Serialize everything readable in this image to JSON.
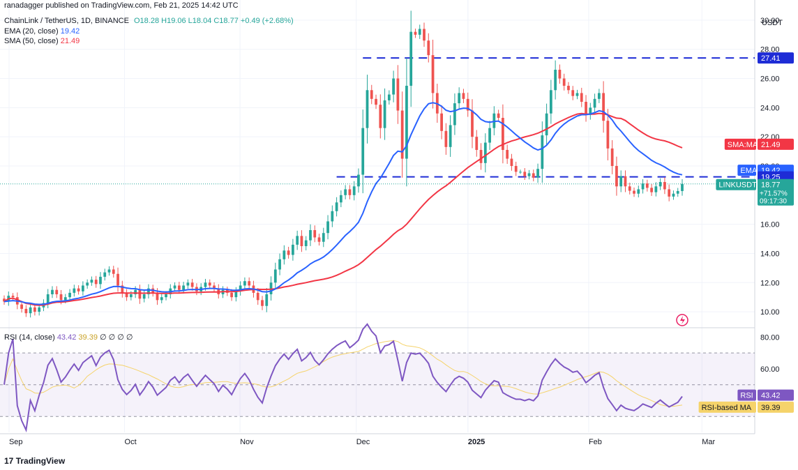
{
  "publisher": "ranadagger published on TradingView.com, Feb 21, 2025 14:42 UTC",
  "legend": {
    "symbol": "ChainLink / TetherUS, 1D, BINANCE",
    "ohlc": "O18.28  H19.06  L18.04  C18.77  +0.49 (+2.68%)",
    "ema": "EMA (20, close)",
    "ema_value": "19.42",
    "sma": "SMA (50, close)",
    "sma_value": "21.49"
  },
  "rsi_legend": {
    "label": "RSI (14, close)",
    "value1": "43.42",
    "value2": "39.39",
    "rest": "∅  ∅  ∅  ∅"
  },
  "currency": "USDT",
  "price_ticks": [
    "30.00",
    "28.00",
    "26.00",
    "24.00",
    "22.00",
    "20.00",
    "16.00",
    "14.00",
    "12.00",
    "10.00"
  ],
  "rsi_ticks": [
    "80.00",
    "60.00"
  ],
  "time_ticks": [
    "Sep",
    "Oct",
    "Nov",
    "Dec",
    "2025",
    "Jan",
    "Feb",
    "Mar"
  ],
  "badges": {
    "level_top": "27.41",
    "sma": {
      "label": "SMA:MA",
      "value": "21.49"
    },
    "ema": {
      "label": "EMA",
      "value": "19.42"
    },
    "level_mid": "19.25",
    "price": {
      "label": "LINKUSDT",
      "value": "18.77",
      "change": "+71.57%",
      "timer": "09:17:30"
    },
    "rsi": {
      "label": "RSI",
      "value": "43.42"
    },
    "rsi_ma": {
      "label": "RSI-based MA",
      "value": "39.39"
    }
  },
  "logo": "TradingView",
  "colors": {
    "up": "#26a69a",
    "down": "#ef5350",
    "ema": "#2962ff",
    "sma": "#f23645",
    "rsi": "#7e57c2",
    "rsi_ma": "#f5d36a",
    "level": "#1e2cd6",
    "price": "#26a69a"
  },
  "chart_data": {
    "type": "candlestick",
    "title": "ChainLink / TetherUS, 1D, BINANCE",
    "y_range": [
      9,
      31
    ],
    "levels": [
      27.41,
      19.25
    ],
    "last_close": 18.77,
    "ema20_last": 19.42,
    "sma50_last": 21.49,
    "rsi_last": 43.42,
    "rsi_ma_last": 39.39,
    "rsi_range": [
      20,
      85
    ],
    "rsi_band": [
      30,
      70
    ],
    "closes": [
      10.7,
      11.1,
      11.0,
      10.5,
      10.2,
      9.9,
      10.3,
      10.0,
      10.3,
      10.6,
      11.2,
      11.5,
      11.2,
      10.8,
      11.0,
      11.3,
      11.6,
      11.4,
      11.8,
      12.0,
      12.2,
      11.9,
      12.4,
      12.7,
      12.9,
      12.6,
      11.8,
      11.3,
      11.0,
      11.2,
      11.5,
      10.9,
      11.2,
      11.6,
      11.3,
      10.8,
      11.0,
      11.2,
      11.6,
      11.8,
      11.5,
      11.8,
      12.0,
      11.7,
      11.4,
      11.7,
      12.0,
      11.8,
      11.6,
      11.2,
      11.5,
      11.3,
      11.0,
      11.4,
      11.8,
      12.1,
      11.8,
      11.3,
      10.8,
      10.4,
      11.2,
      12.0,
      12.9,
      13.6,
      14.2,
      13.9,
      14.6,
      15.2,
      14.5,
      14.9,
      15.6,
      15.1,
      14.8,
      15.4,
      16.2,
      16.9,
      17.5,
      18.0,
      18.4,
      18.0,
      18.6,
      19.4,
      22.6,
      25.2,
      24.6,
      24.2,
      22.6,
      24.5,
      24.9,
      26.0,
      23.8,
      20.5,
      25.5,
      29.2,
      29.0,
      29.4,
      28.6,
      27.6,
      25.0,
      23.6,
      22.4,
      21.3,
      22.8,
      24.3,
      25.0,
      24.6,
      23.8,
      22.0,
      21.1,
      20.2,
      21.6,
      22.6,
      23.6,
      23.3,
      21.1,
      20.5,
      20.0,
      19.6,
      19.6,
      19.3,
      19.5,
      19.2,
      19.8,
      22.1,
      23.6,
      25.2,
      26.6,
      26.0,
      25.5,
      25.2,
      24.8,
      25.0,
      24.4,
      23.5,
      24.0,
      24.6,
      25.0,
      23.1,
      21.2,
      20.0,
      18.6,
      19.3,
      18.6,
      18.3,
      18.1,
      18.4,
      18.8,
      18.5,
      18.2,
      18.6,
      18.9,
      18.4,
      17.9,
      18.1,
      18.28,
      18.77
    ]
  }
}
